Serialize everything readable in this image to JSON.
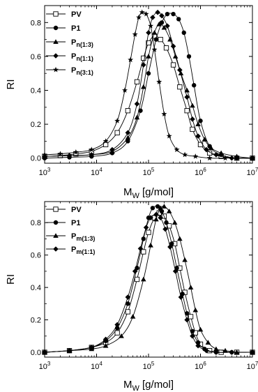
{
  "chart_data": [
    {
      "type": "line",
      "title": "",
      "xlabel_main": "M",
      "xlabel_sub": "W",
      "xlabel_unit": " [g/mol]",
      "ylabel": "RI",
      "xscale": "log",
      "xlim": [
        1000,
        10000000
      ],
      "ylim": [
        -0.03,
        0.9
      ],
      "xticks": [
        {
          "base": "10",
          "exp": "3"
        },
        {
          "base": "10",
          "exp": "4"
        },
        {
          "base": "10",
          "exp": "5"
        },
        {
          "base": "10",
          "exp": "6"
        },
        {
          "base": "10",
          "exp": "7"
        }
      ],
      "xtick_values": [
        1000,
        10000,
        100000,
        1000000,
        10000000
      ],
      "yticks": [
        "0.0",
        "0.2",
        "0.4",
        "0.6",
        "0.8"
      ],
      "ytick_values": [
        0,
        0.2,
        0.4,
        0.6,
        0.8
      ],
      "legend_position": "top-left",
      "series": [
        {
          "main": "PV",
          "sub": "",
          "marker": "square-open",
          "x": [
            1000,
            2000,
            4000,
            8000,
            15000,
            25000,
            40000,
            60000,
            80000,
            100000,
            130000,
            170000,
            220000,
            300000,
            400000,
            550000,
            700000,
            1000000,
            1500000,
            2500000,
            5000000,
            10000000
          ],
          "y": [
            0.01,
            0.015,
            0.025,
            0.04,
            0.08,
            0.15,
            0.28,
            0.45,
            0.59,
            0.68,
            0.72,
            0.7,
            0.65,
            0.55,
            0.42,
            0.28,
            0.17,
            0.08,
            0.03,
            0.01,
            0.0,
            0.0
          ]
        },
        {
          "main": "P1",
          "sub": "",
          "marker": "circle",
          "x": [
            1000,
            3000,
            8000,
            20000,
            40000,
            70000,
            100000,
            140000,
            180000,
            230000,
            300000,
            380000,
            480000,
            600000,
            750000,
            1000000,
            1500000,
            2500000,
            5000000,
            10000000
          ],
          "y": [
            0.0,
            0.005,
            0.01,
            0.03,
            0.1,
            0.28,
            0.5,
            0.7,
            0.8,
            0.85,
            0.85,
            0.82,
            0.74,
            0.6,
            0.43,
            0.22,
            0.07,
            0.02,
            0.0,
            0.0
          ]
        },
        {
          "main": "P",
          "sub": "n",
          "suffix": "(1:3)",
          "marker": "triangle",
          "x": [
            1000,
            3000,
            8000,
            20000,
            40000,
            60000,
            80000,
            100000,
            130000,
            160000,
            200000,
            260000,
            330000,
            420000,
            550000,
            700000,
            900000,
            1200000,
            1600000,
            2500000,
            5000000,
            10000000
          ],
          "y": [
            0.01,
            0.015,
            0.02,
            0.04,
            0.12,
            0.24,
            0.42,
            0.6,
            0.74,
            0.79,
            0.77,
            0.7,
            0.6,
            0.5,
            0.4,
            0.31,
            0.2,
            0.11,
            0.06,
            0.03,
            0.01,
            0.0
          ]
        },
        {
          "main": "P",
          "sub": "n",
          "suffix": "(1:1)",
          "marker": "diamond",
          "x": [
            1000,
            3000,
            8000,
            20000,
            40000,
            60000,
            80000,
            100000,
            120000,
            150000,
            180000,
            230000,
            300000,
            400000,
            550000,
            700000,
            900000,
            1300000,
            2000000,
            4000000,
            10000000
          ],
          "y": [
            0.01,
            0.015,
            0.02,
            0.05,
            0.15,
            0.32,
            0.55,
            0.74,
            0.83,
            0.86,
            0.84,
            0.78,
            0.66,
            0.52,
            0.36,
            0.23,
            0.13,
            0.05,
            0.02,
            0.0,
            0.0
          ]
        },
        {
          "main": "P",
          "sub": "n",
          "suffix": "(3:1)",
          "marker": "star",
          "x": [
            1000,
            2000,
            4000,
            8000,
            15000,
            25000,
            35000,
            45000,
            55000,
            65000,
            75000,
            90000,
            110000,
            130000,
            160000,
            200000,
            250000,
            350000,
            500000,
            800000,
            1500000,
            3000000,
            10000000
          ],
          "y": [
            0.02,
            0.025,
            0.035,
            0.05,
            0.1,
            0.22,
            0.4,
            0.58,
            0.73,
            0.83,
            0.86,
            0.85,
            0.78,
            0.64,
            0.45,
            0.26,
            0.13,
            0.05,
            0.02,
            0.01,
            0.0,
            0.0,
            0.0
          ]
        }
      ]
    },
    {
      "type": "line",
      "title": "",
      "xlabel_main": "M",
      "xlabel_sub": "W",
      "xlabel_unit": " [g/mol]",
      "ylabel": "RI",
      "xscale": "log",
      "xlim": [
        1000,
        10000000
      ],
      "ylim": [
        -0.03,
        0.93
      ],
      "xticks": [
        {
          "base": "10",
          "exp": "3"
        },
        {
          "base": "10",
          "exp": "4"
        },
        {
          "base": "10",
          "exp": "5"
        },
        {
          "base": "10",
          "exp": "6"
        },
        {
          "base": "10",
          "exp": "7"
        }
      ],
      "xtick_values": [
        1000,
        10000,
        100000,
        1000000,
        10000000
      ],
      "yticks": [
        "0.0",
        "0.2",
        "0.4",
        "0.6",
        "0.8"
      ],
      "ytick_values": [
        0,
        0.2,
        0.4,
        0.6,
        0.8
      ],
      "legend_position": "top-left",
      "series": [
        {
          "main": "PV",
          "sub": "",
          "marker": "square-open",
          "x": [
            1000,
            3000,
            8000,
            15000,
            25000,
            40000,
            60000,
            80000,
            100000,
            130000,
            160000,
            200000,
            250000,
            320000,
            400000,
            500000,
            650000,
            800000,
            1000000,
            1500000,
            2500000,
            5000000,
            10000000
          ],
          "y": [
            0.0,
            0.01,
            0.03,
            0.06,
            0.12,
            0.25,
            0.45,
            0.62,
            0.74,
            0.83,
            0.86,
            0.84,
            0.78,
            0.67,
            0.52,
            0.37,
            0.22,
            0.12,
            0.05,
            0.01,
            0.0,
            0.0,
            0.0
          ]
        },
        {
          "main": "P1",
          "sub": "",
          "marker": "circle",
          "x": [
            1000,
            3000,
            8000,
            15000,
            25000,
            40000,
            60000,
            80000,
            100000,
            120000,
            150000,
            180000,
            220000,
            280000,
            350000,
            450000,
            550000,
            700000,
            900000,
            1200000,
            2000000,
            4000000,
            10000000
          ],
          "y": [
            0.0,
            0.01,
            0.03,
            0.07,
            0.15,
            0.3,
            0.52,
            0.7,
            0.83,
            0.89,
            0.9,
            0.87,
            0.8,
            0.67,
            0.52,
            0.36,
            0.24,
            0.13,
            0.06,
            0.02,
            0.0,
            0.0,
            0.0
          ]
        },
        {
          "main": "P",
          "sub": "m",
          "suffix": "(1:3)",
          "marker": "triangle",
          "x": [
            1000,
            3000,
            8000,
            15000,
            30000,
            50000,
            80000,
            110000,
            140000,
            170000,
            200000,
            250000,
            320000,
            400000,
            500000,
            650000,
            800000,
            1000000,
            1400000,
            2000000,
            3000000,
            5000000,
            10000000
          ],
          "y": [
            0.0,
            0.01,
            0.02,
            0.04,
            0.1,
            0.22,
            0.45,
            0.66,
            0.82,
            0.89,
            0.9,
            0.87,
            0.8,
            0.7,
            0.57,
            0.4,
            0.26,
            0.14,
            0.06,
            0.02,
            0.01,
            0.0,
            0.0
          ]
        },
        {
          "main": "P",
          "sub": "m",
          "suffix": "(1:1)",
          "marker": "diamond",
          "x": [
            1000,
            3000,
            8000,
            15000,
            25000,
            40000,
            55000,
            70000,
            90000,
            110000,
            140000,
            170000,
            210000,
            260000,
            330000,
            420000,
            550000,
            700000,
            900000,
            1300000,
            2000000,
            4000000,
            10000000
          ],
          "y": [
            0.0,
            0.01,
            0.03,
            0.08,
            0.17,
            0.34,
            0.5,
            0.64,
            0.77,
            0.83,
            0.85,
            0.83,
            0.76,
            0.65,
            0.5,
            0.34,
            0.2,
            0.1,
            0.04,
            0.01,
            0.0,
            0.0,
            0.0
          ]
        }
      ]
    }
  ]
}
